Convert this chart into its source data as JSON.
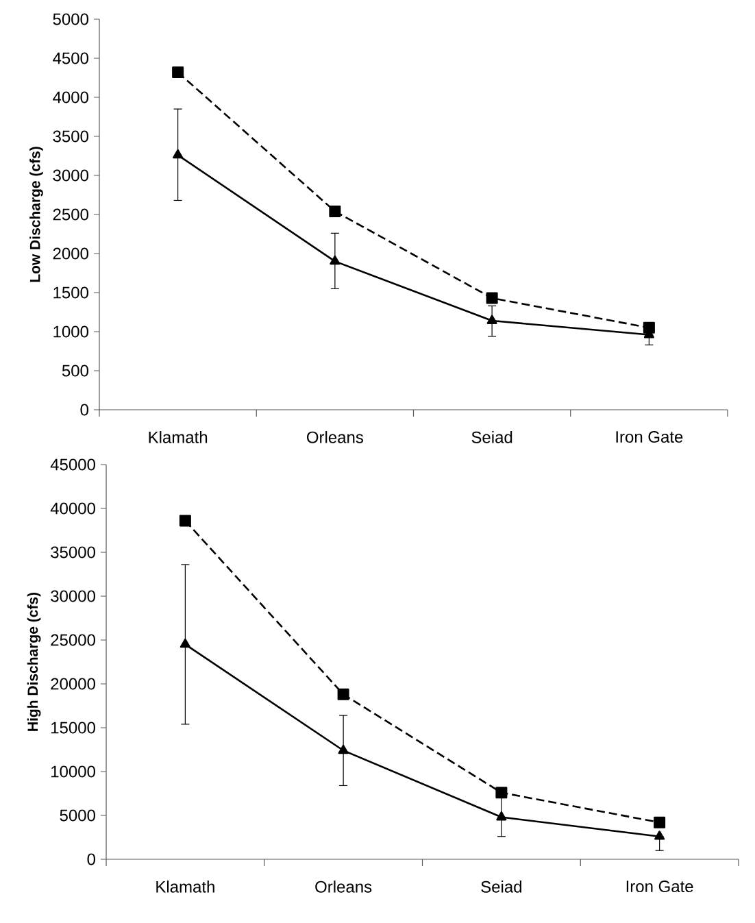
{
  "chart_data": [
    {
      "type": "line",
      "ylabel": "Low Discharge (cfs)",
      "categories": [
        "Klamath",
        "Orleans",
        "Seiad",
        "Iron Gate"
      ],
      "ylim": [
        0,
        5000
      ],
      "yticks": [
        0,
        500,
        1000,
        1500,
        2000,
        2500,
        3000,
        3500,
        4000,
        4500,
        5000
      ],
      "grid": false,
      "series": [
        {
          "color": "#000000",
          "marker": "square",
          "line_style": "dashed",
          "values": [
            4320,
            2540,
            1430,
            1050
          ]
        },
        {
          "color": "#000000",
          "marker": "triangle",
          "line_style": "solid",
          "values": [
            3260,
            1900,
            1140,
            960
          ],
          "errors": [
            [
              2680,
              3850
            ],
            [
              1550,
              2260
            ],
            [
              940,
              1330
            ],
            [
              830,
              960
            ]
          ]
        }
      ]
    },
    {
      "type": "line",
      "ylabel": "High Discharge (cfs)",
      "categories": [
        "Klamath",
        "Orleans",
        "Seiad",
        "Iron Gate"
      ],
      "ylim": [
        0,
        45000
      ],
      "yticks": [
        0,
        5000,
        10000,
        15000,
        20000,
        25000,
        30000,
        35000,
        40000,
        45000
      ],
      "grid": false,
      "series": [
        {
          "color": "#000000",
          "marker": "square",
          "line_style": "dashed",
          "values": [
            38600,
            18800,
            7600,
            4200
          ]
        },
        {
          "color": "#000000",
          "marker": "triangle",
          "line_style": "solid",
          "values": [
            24500,
            12400,
            4800,
            2600
          ],
          "errors": [
            [
              15400,
              33600
            ],
            [
              8400,
              16400
            ],
            [
              2600,
              7000
            ],
            [
              1000,
              2600
            ]
          ]
        }
      ]
    }
  ]
}
